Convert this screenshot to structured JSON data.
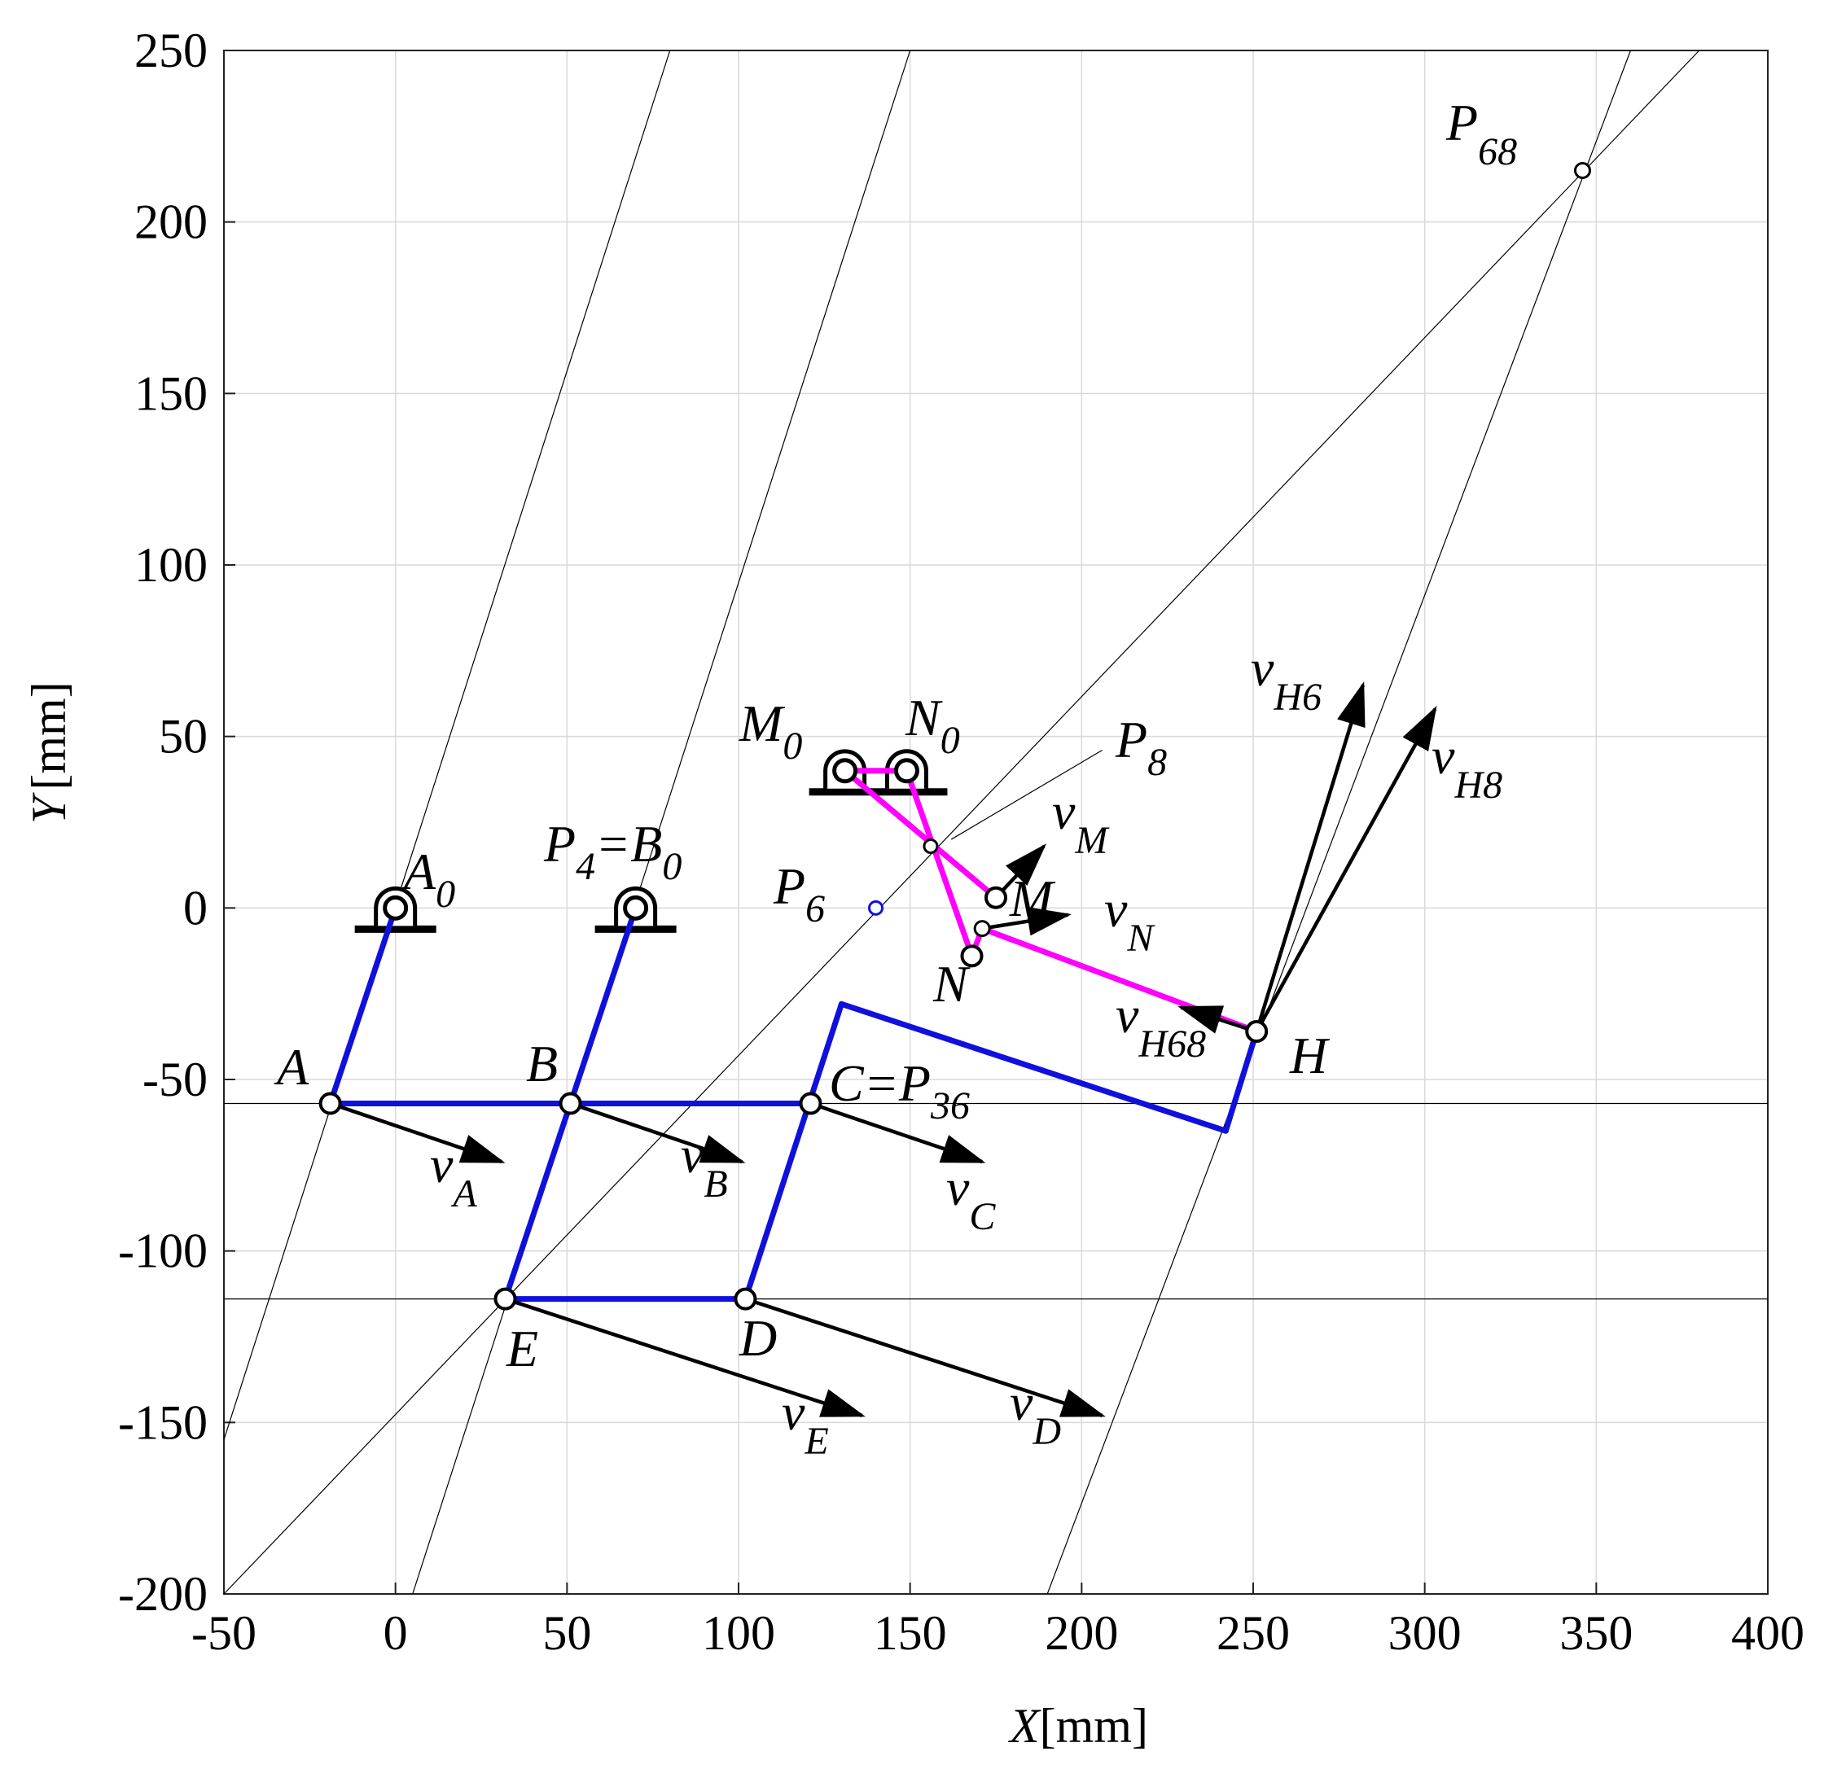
{
  "axes": {
    "x_ticks": [
      -50,
      0,
      50,
      100,
      150,
      200,
      250,
      300,
      350,
      400
    ],
    "y_ticks": [
      -200,
      -150,
      -100,
      -50,
      0,
      50,
      100,
      150,
      200,
      250
    ],
    "x_label_var": "X",
    "x_label_unit": "[mm]",
    "y_label_var": "Y",
    "y_label_unit": "[mm]",
    "xlim": [
      -50,
      400
    ],
    "ylim": [
      -200,
      250
    ],
    "grid": true
  },
  "colors": {
    "blue_links": "#1010dd",
    "magenta_links": "#ff00ff",
    "arrows": "#000000",
    "construction_lines": "#000000",
    "grid": "#d9d9d9",
    "p6_marker": "#1010dd"
  },
  "points": {
    "A0": [
      0,
      0
    ],
    "B0": [
      70,
      0
    ],
    "M0": [
      131,
      40
    ],
    "N0": [
      149,
      40
    ],
    "A": [
      -19,
      -57
    ],
    "B": [
      51,
      -57
    ],
    "C": [
      121,
      -57
    ],
    "E": [
      32,
      -114
    ],
    "D": [
      102,
      -114
    ],
    "M": [
      175,
      3
    ],
    "N": [
      168,
      -14
    ],
    "Mid": [
      171,
      -6
    ],
    "H": [
      251,
      -36
    ],
    "P8": [
      156,
      18
    ],
    "P6": [
      140,
      0
    ],
    "P68": [
      346,
      215
    ],
    "frameTop": [
      130,
      -28
    ],
    "frameBottom": [
      242,
      -65
    ]
  },
  "blue_links": [
    [
      "A0",
      "A"
    ],
    [
      "B0",
      "E"
    ],
    [
      "A",
      "C"
    ],
    [
      "E",
      "D"
    ],
    [
      "D",
      "frameTop"
    ],
    [
      "frameTop",
      "frameBottom"
    ],
    [
      "frameBottom",
      "H"
    ]
  ],
  "magenta_links": [
    [
      "M0",
      "N0"
    ],
    [
      "M0",
      "M"
    ],
    [
      "N0",
      "N"
    ],
    [
      "N",
      "Mid"
    ],
    [
      "Mid",
      "H"
    ]
  ],
  "velocity_vectors": [
    {
      "from": [
        -19,
        -57
      ],
      "to": [
        31,
        -74
      ]
    },
    {
      "from": [
        51,
        -57
      ],
      "to": [
        101,
        -74
      ]
    },
    {
      "from": [
        121,
        -57
      ],
      "to": [
        171,
        -74
      ]
    },
    {
      "from": [
        32,
        -114
      ],
      "to": [
        136,
        -148
      ]
    },
    {
      "from": [
        102,
        -114
      ],
      "to": [
        206,
        -148
      ]
    },
    {
      "from": [
        175,
        3
      ],
      "to": [
        189,
        18
      ]
    },
    {
      "from": [
        171,
        -6
      ],
      "to": [
        196,
        -2
      ]
    },
    {
      "from": [
        251,
        -36
      ],
      "to": [
        229,
        -29
      ]
    },
    {
      "from": [
        251,
        -36
      ],
      "to": [
        282,
        65
      ]
    },
    {
      "from": [
        251,
        -36
      ],
      "to": [
        303,
        58
      ]
    }
  ],
  "construction_lines": [
    {
      "from": [
        -50,
        -155
      ],
      "to": [
        80,
        250
      ]
    },
    {
      "from": [
        5,
        -200
      ],
      "to": [
        150,
        250
      ]
    },
    {
      "from": [
        190,
        -200
      ],
      "to": [
        360,
        250
      ]
    },
    {
      "from": [
        -50,
        -200
      ],
      "to": [
        380,
        250
      ]
    },
    {
      "from": [
        -50,
        -57
      ],
      "to": [
        400,
        -57
      ]
    },
    {
      "from": [
        -50,
        -114
      ],
      "to": [
        400,
        -114
      ]
    },
    {
      "from": [
        162,
        20
      ],
      "to": [
        206,
        46
      ]
    }
  ],
  "labels": {
    "A0": {
      "main": "A",
      "sub": "0"
    },
    "B0": {
      "main": "P",
      "sub": "4",
      "main2": "=B",
      "sub2": "0"
    },
    "M0": {
      "main": "M",
      "sub": "0"
    },
    "N0": {
      "main": "N",
      "sub": "0"
    },
    "P8": {
      "main": "P",
      "sub": "8"
    },
    "P6": {
      "main": "P",
      "sub": "6"
    },
    "P68": {
      "main": "P",
      "sub": "68"
    },
    "M": {
      "main": "M"
    },
    "N": {
      "main": "N"
    },
    "A": {
      "main": "A"
    },
    "B": {
      "main": "B"
    },
    "C": {
      "main": "C=P",
      "sub": "36"
    },
    "E": {
      "main": "E"
    },
    "D": {
      "main": "D"
    },
    "H": {
      "main": "H"
    },
    "vA": {
      "main": "v",
      "sub": "A"
    },
    "vB": {
      "main": "v",
      "sub": "B"
    },
    "vC": {
      "main": "v",
      "sub": "C"
    },
    "vE": {
      "main": "v",
      "sub": "E"
    },
    "vD": {
      "main": "v",
      "sub": "D"
    },
    "vM": {
      "main": "v",
      "sub": "M"
    },
    "vN": {
      "main": "v",
      "sub": "N"
    },
    "vH68": {
      "main": "v",
      "sub": "H68"
    },
    "vH6": {
      "main": "v",
      "sub": "H6"
    },
    "vH8": {
      "main": "v",
      "sub": "H8"
    }
  }
}
